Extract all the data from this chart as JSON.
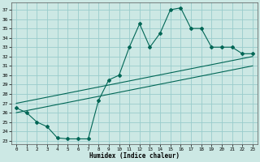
{
  "xlabel": "Humidex (Indice chaleur)",
  "background_color": "#cce8e4",
  "grid_color": "#99cccc",
  "line_color": "#006655",
  "xlim": [
    -0.5,
    23.5
  ],
  "ylim": [
    22.6,
    37.8
  ],
  "yticks": [
    23,
    24,
    25,
    26,
    27,
    28,
    29,
    30,
    31,
    32,
    33,
    34,
    35,
    36,
    37
  ],
  "xticks": [
    0,
    1,
    2,
    3,
    4,
    5,
    6,
    7,
    8,
    9,
    10,
    11,
    12,
    13,
    14,
    15,
    16,
    17,
    18,
    19,
    20,
    21,
    22,
    23
  ],
  "main_x": [
    0,
    1,
    2,
    3,
    4,
    5,
    6,
    7,
    8,
    9,
    10,
    11,
    12,
    13,
    14,
    15,
    16,
    17,
    18,
    19,
    20,
    21,
    22,
    23
  ],
  "main_y": [
    26.5,
    26.0,
    25.0,
    24.5,
    23.3,
    23.2,
    23.2,
    23.2,
    27.3,
    29.5,
    30.0,
    33.0,
    35.5,
    33.0,
    34.5,
    37.0,
    37.2,
    35.0,
    35.0,
    33.0,
    33.0,
    33.0,
    32.3,
    32.3
  ],
  "trend1_x": [
    0,
    23
  ],
  "trend1_y": [
    27.0,
    32.0
  ],
  "trend2_x": [
    0,
    23
  ],
  "trend2_y": [
    26.0,
    31.0
  ]
}
